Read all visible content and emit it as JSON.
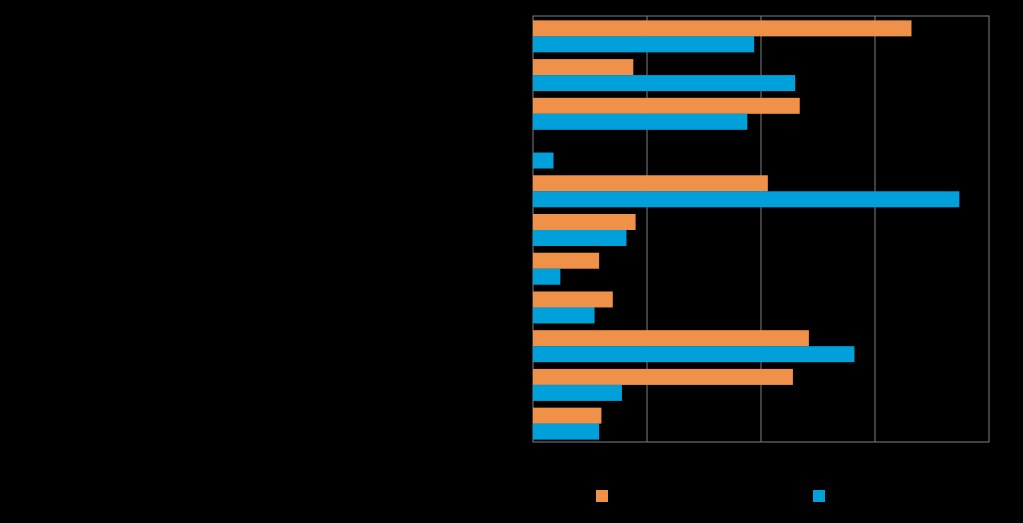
{
  "chart_data": {
    "type": "bar",
    "orientation": "horizontal",
    "categories": [
      "",
      "",
      "",
      "",
      "",
      "",
      "",
      "",
      "",
      "",
      ""
    ],
    "series": [
      {
        "name": "",
        "color": "#F0914A",
        "values": [
          16.6,
          4.4,
          11.7,
          null,
          10.3,
          4.5,
          2.9,
          3.5,
          12.1,
          11.4,
          3.0
        ]
      },
      {
        "name": "",
        "color": "#00A0DA",
        "values": [
          9.7,
          11.5,
          9.4,
          0.9,
          18.7,
          4.1,
          1.2,
          2.7,
          14.1,
          3.9,
          2.9
        ]
      }
    ],
    "xlim": [
      0,
      20
    ],
    "x_gridlines": [
      5,
      10,
      15
    ],
    "grid": true,
    "legend": "bottom",
    "title": "",
    "xlabel": "",
    "ylabel": ""
  }
}
